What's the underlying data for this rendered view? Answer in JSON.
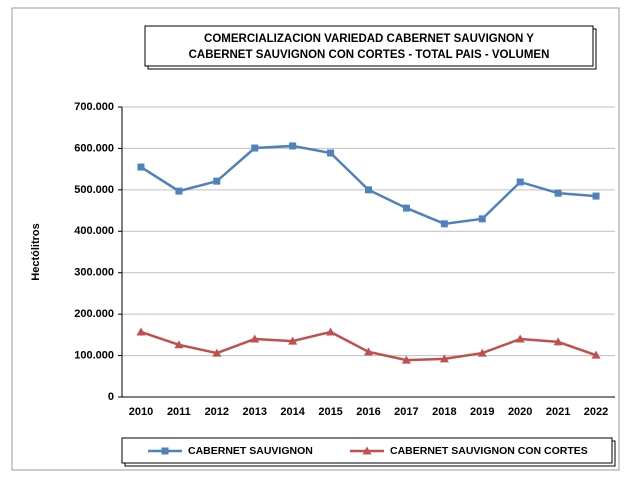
{
  "chart_data": {
    "type": "line",
    "title": [
      "COMERCIALIZACION VARIEDAD CABERNET SAUVIGNON  Y",
      "CABERNET SAUVIGNON CON CORTES - TOTAL PAIS - VOLUMEN"
    ],
    "y_label": "Hectólitros",
    "categories": [
      "2010",
      "2011",
      "2012",
      "2013",
      "2014",
      "2015",
      "2016",
      "2017",
      "2018",
      "2019",
      "2020",
      "2021",
      "2022"
    ],
    "series": [
      {
        "name": "CABERNET SAUVIGNON",
        "color": "#4f81bd",
        "marker": "square",
        "values": [
          555000,
          497000,
          521000,
          601000,
          606000,
          589000,
          500000,
          456000,
          418000,
          430000,
          519000,
          492000,
          485000
        ]
      },
      {
        "name": "CABERNET SAUVIGNON CON CORTES",
        "color": "#c0504d",
        "marker": "triangle",
        "values": [
          157000,
          126000,
          106000,
          140000,
          135000,
          157000,
          109000,
          89000,
          92000,
          106000,
          140000,
          133000,
          101000
        ]
      }
    ],
    "ylim": [
      0,
      700000
    ],
    "yticks": [
      {
        "value": 0,
        "label": "0"
      },
      {
        "value": 100000,
        "label": "100.000"
      },
      {
        "value": 200000,
        "label": "200.000"
      },
      {
        "value": 300000,
        "label": "300.000"
      },
      {
        "value": 400000,
        "label": "400.000"
      },
      {
        "value": 500000,
        "label": "500.000"
      },
      {
        "value": 600000,
        "label": "600.000"
      },
      {
        "value": 700000,
        "label": "700.000"
      }
    ],
    "grid": true,
    "legend": "bottom"
  }
}
